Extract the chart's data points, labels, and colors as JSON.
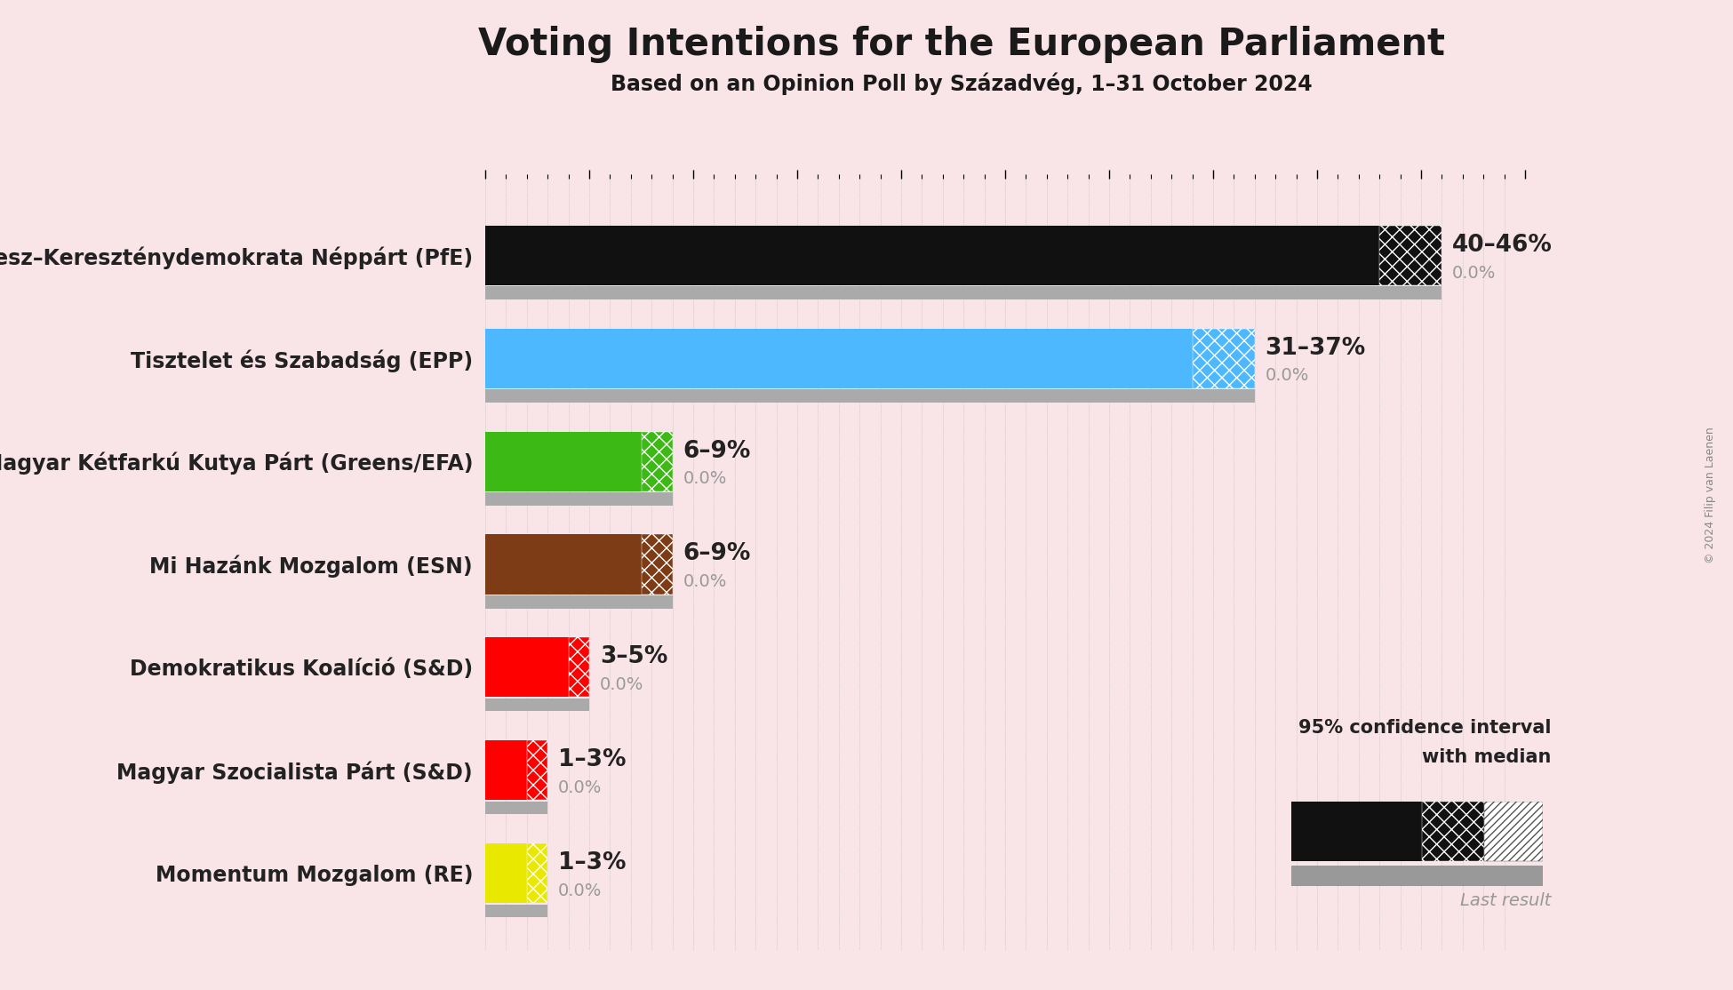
{
  "title": "Voting Intentions for the European Parliament",
  "subtitle": "Based on an Opinion Poll by Századvég, 1–31 October 2024",
  "copyright": "© 2024 Filip van Laenen",
  "background_color": "#f9e4e8",
  "parties": [
    {
      "name": "Fidesz–Kereszténydemokrata Néppárt (PfE)",
      "median": 43,
      "low": 40,
      "high": 46,
      "last": 0.0,
      "color": "#111111",
      "label": "40–46%",
      "last_label": "0.0%"
    },
    {
      "name": "Tisztelet és Szabadság (EPP)",
      "median": 34,
      "low": 31,
      "high": 37,
      "last": 0.0,
      "color": "#4eb8ff",
      "label": "31–37%",
      "last_label": "0.0%"
    },
    {
      "name": "Magyar Kétfarkú Kutya Párt (Greens/EFA)",
      "median": 7.5,
      "low": 6,
      "high": 9,
      "last": 0.0,
      "color": "#3cb915",
      "label": "6–9%",
      "last_label": "0.0%"
    },
    {
      "name": "Mi Hazánk Mozgalom (ESN)",
      "median": 7.5,
      "low": 6,
      "high": 9,
      "last": 0.0,
      "color": "#7d3c15",
      "label": "6–9%",
      "last_label": "0.0%"
    },
    {
      "name": "Demokratikus Koalíció (S&D)",
      "median": 4,
      "low": 3,
      "high": 5,
      "last": 0.0,
      "color": "#ff0000",
      "label": "3–5%",
      "last_label": "0.0%"
    },
    {
      "name": "Magyar Szocialista Párt (S&D)",
      "median": 2,
      "low": 1,
      "high": 3,
      "last": 0.0,
      "color": "#ff0000",
      "label": "1–3%",
      "last_label": "0.0%"
    },
    {
      "name": "Momentum Mozgalom (RE)",
      "median": 2,
      "low": 1,
      "high": 3,
      "last": 0.0,
      "color": "#e8e800",
      "label": "1–3%",
      "last_label": "0.0%"
    }
  ],
  "xlim_max": 50,
  "bar_height": 0.58,
  "last_bar_height": 0.25,
  "legend_text_line1": "95% confidence interval",
  "legend_text_line2": "with median",
  "legend_last": "Last result"
}
